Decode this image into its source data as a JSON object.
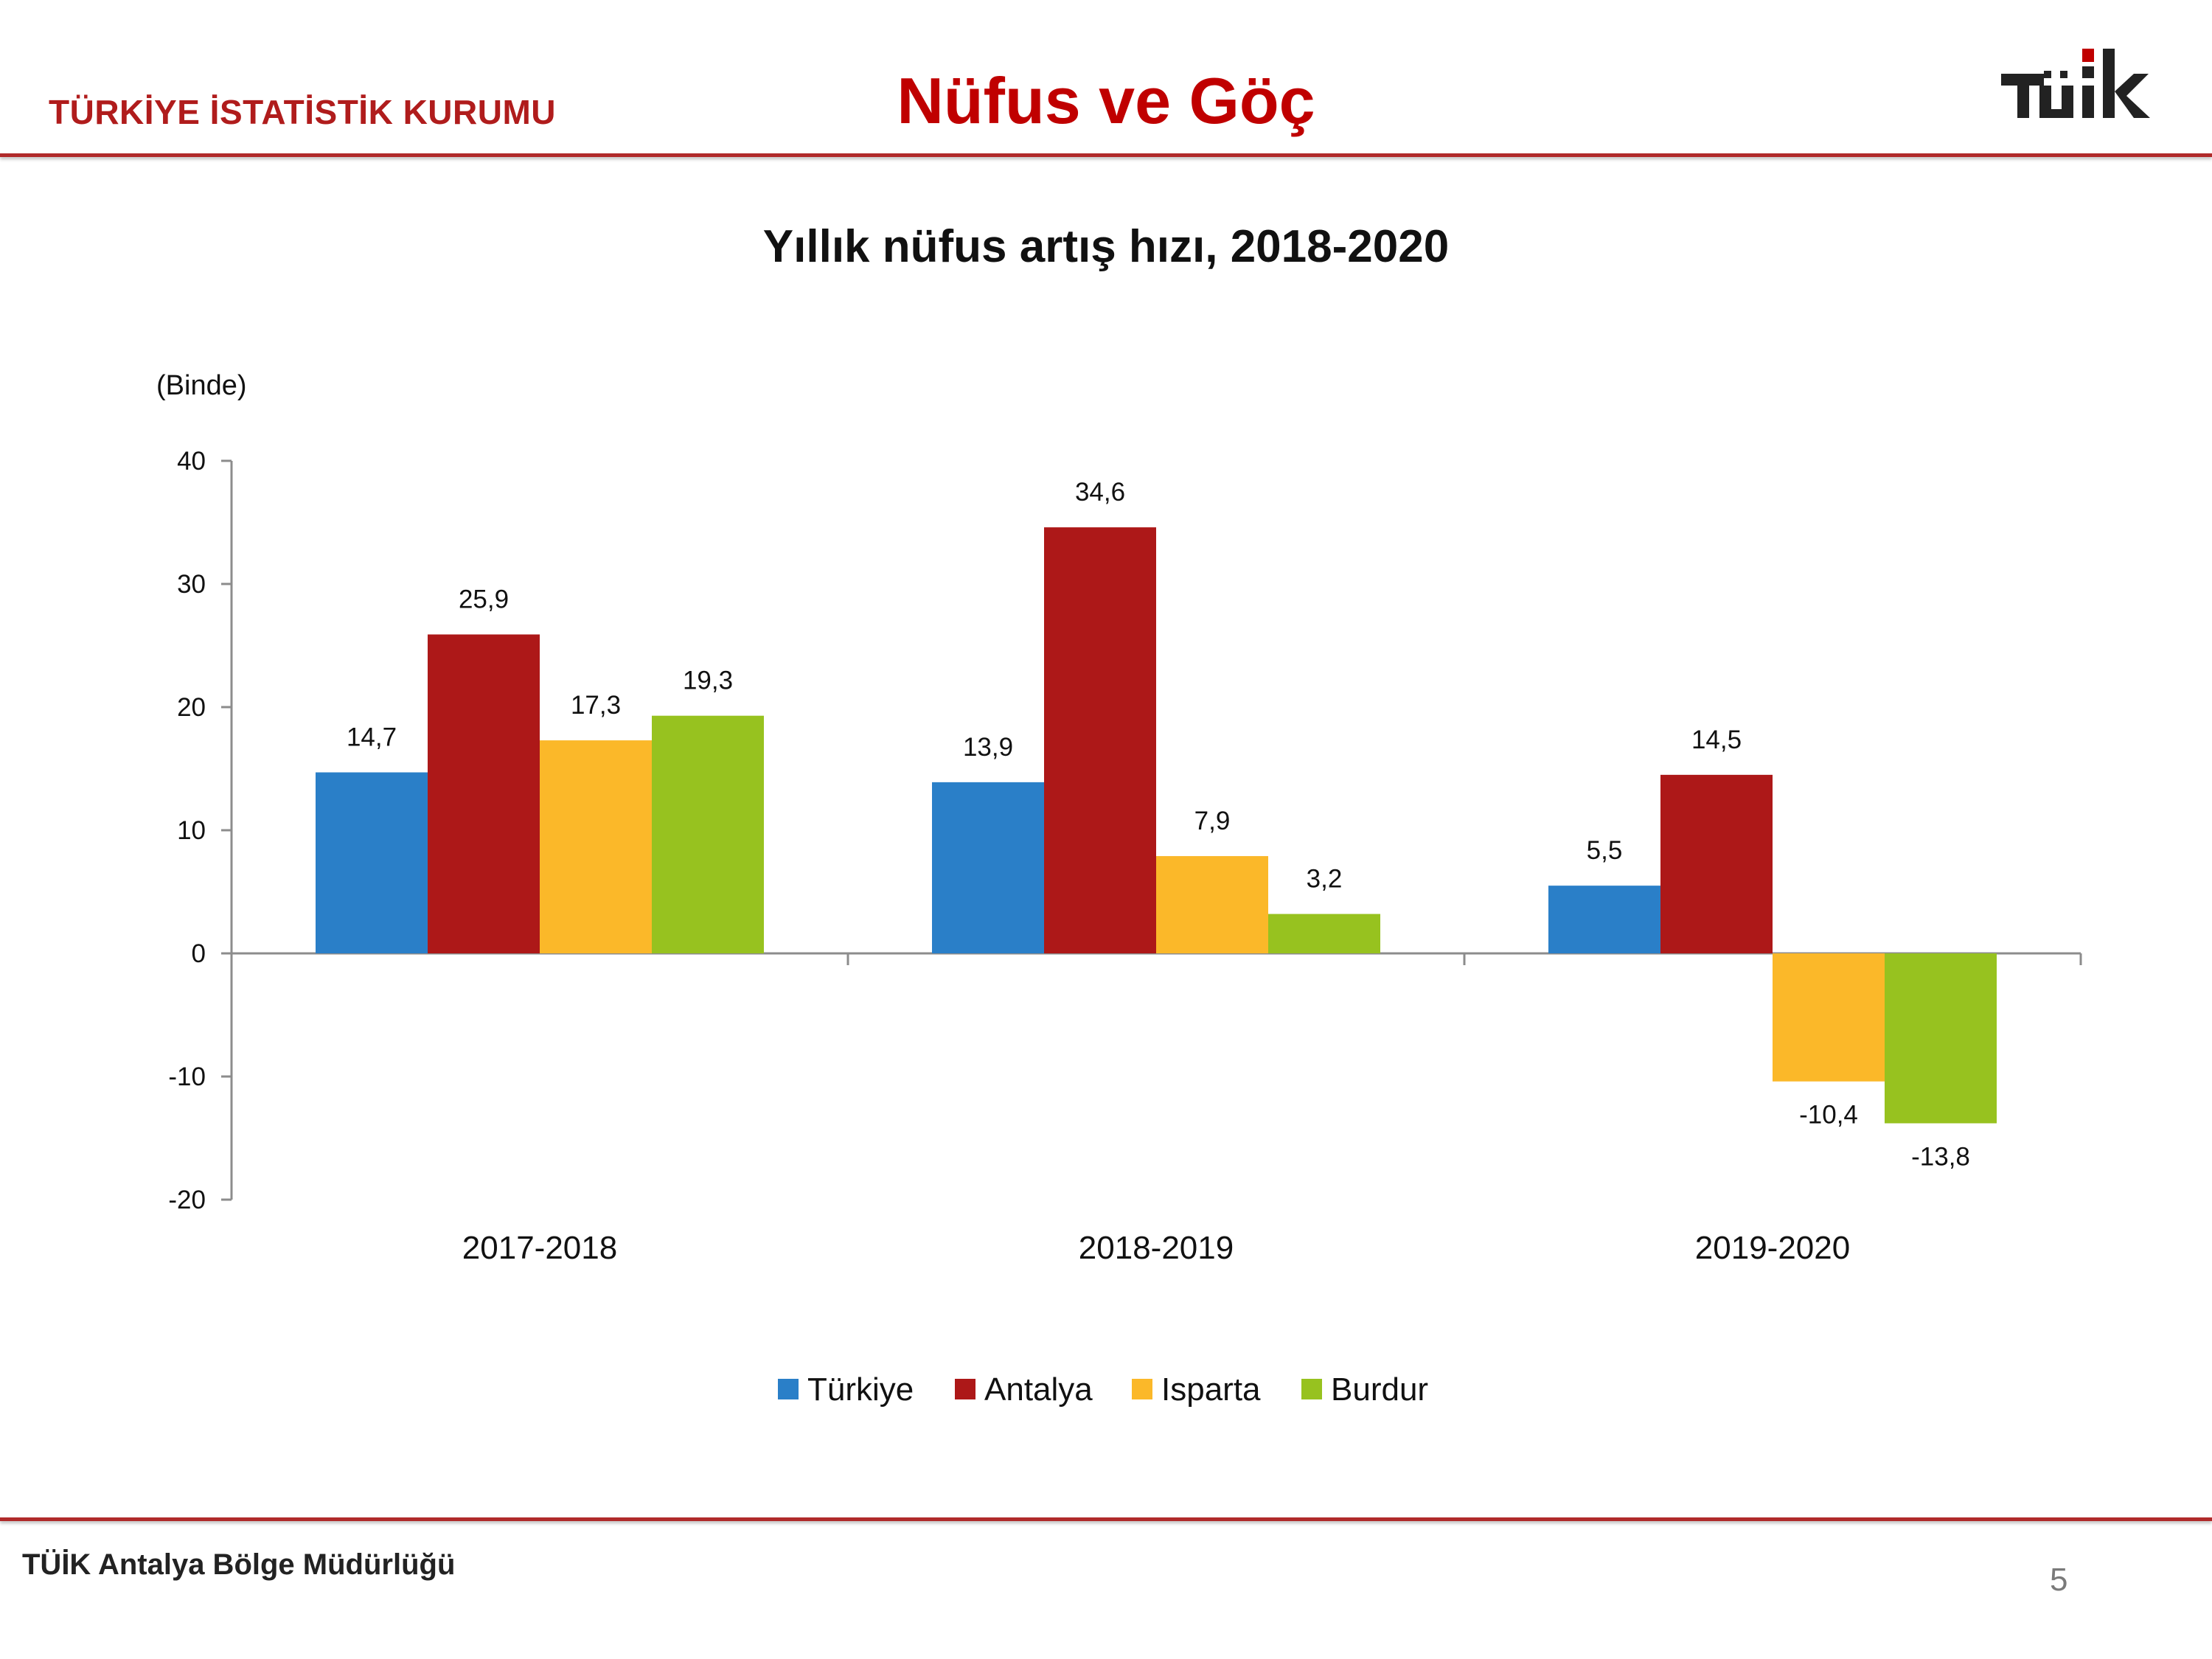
{
  "header": {
    "org_name": "TÜRKİYE İSTATİSTİK KURUMU",
    "page_title": "Nüfus ve Göç",
    "logo_text": "TÜİK"
  },
  "footer": {
    "office": "TÜİK Antalya Bölge Müdürlüğü",
    "page_number": "5"
  },
  "chart_data": {
    "type": "bar",
    "title": "Yıllık nüfus artış hızı, 2018-2020",
    "unit_label": "(Binde)",
    "categories": [
      "2017-2018",
      "2018-2019",
      "2019-2020"
    ],
    "series": [
      {
        "name": "Türkiye",
        "color": "#2a7fc8",
        "values": [
          14.7,
          13.9,
          5.5
        ],
        "labels": [
          "14,7",
          "13,9",
          "5,5"
        ]
      },
      {
        "name": "Antalya",
        "color": "#ad1818",
        "values": [
          25.9,
          34.6,
          14.5
        ],
        "labels": [
          "25,9",
          "34,6",
          "14,5"
        ]
      },
      {
        "name": "Isparta",
        "color": "#fbb829",
        "values": [
          17.3,
          7.9,
          -10.4
        ],
        "labels": [
          "17,3",
          "7,9",
          "-10,4"
        ]
      },
      {
        "name": "Burdur",
        "color": "#97c21f",
        "values": [
          19.3,
          3.2,
          -13.8
        ],
        "labels": [
          "19,3",
          "3,2",
          "-13,8"
        ]
      }
    ],
    "ylim": [
      -20,
      40
    ],
    "yticks": [
      -20,
      -10,
      0,
      10,
      20,
      30,
      40
    ],
    "grid": false,
    "legend_position": "bottom"
  }
}
